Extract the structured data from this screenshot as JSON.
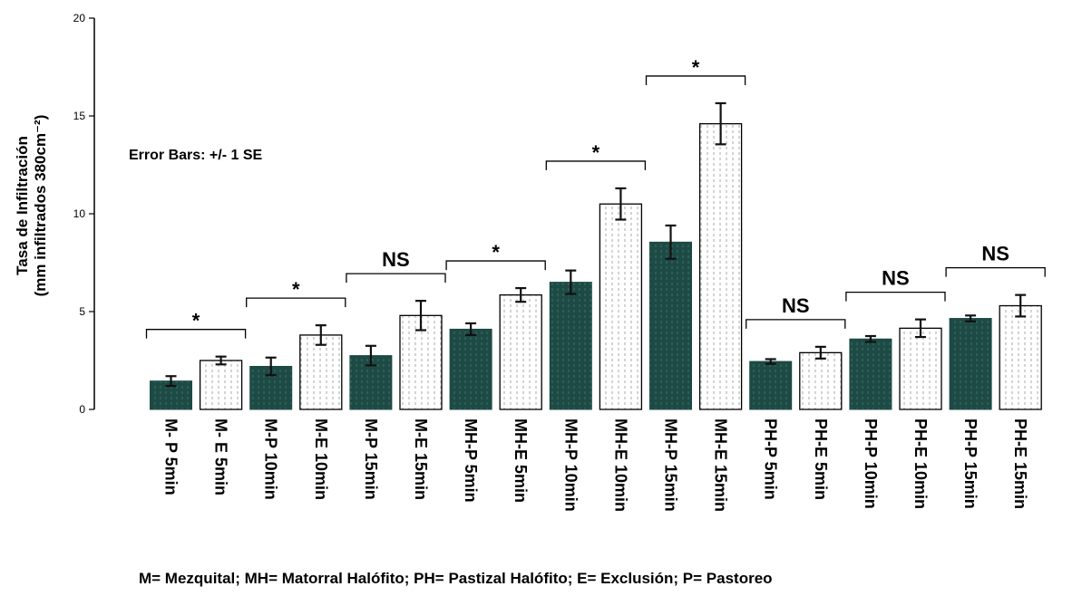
{
  "chart_data": {
    "type": "bar",
    "title": "",
    "ylabel_lines": [
      "Tasa de Infiltración",
      "(mm infiltrados 380cm⁻²)"
    ],
    "xlabel": "",
    "ylim": [
      0,
      20
    ],
    "yticks": [
      0,
      5,
      10,
      15,
      20
    ],
    "grid": false,
    "categories": [
      "M- P 5min",
      "M- E 5min",
      "M-P 10min",
      "M-E 10min",
      "M-P 15min",
      "M-E 15min",
      "MH-P 5min",
      "MH-E 5min",
      "MH-P 10min",
      "MH-E 10min",
      "MH-P 15min",
      "MH-E 15min",
      "PH-P 5min",
      "PH-E 5min",
      "PH-P 10min",
      "PH-E 10min",
      "PH-P 15min",
      "PH-E 15min"
    ],
    "values": [
      1.45,
      2.5,
      2.2,
      3.8,
      2.75,
      4.8,
      4.1,
      5.85,
      6.5,
      10.5,
      8.55,
      14.6,
      2.45,
      2.9,
      3.6,
      4.15,
      4.65,
      5.3
    ],
    "error_se": [
      0.25,
      0.2,
      0.45,
      0.5,
      0.5,
      0.75,
      0.3,
      0.35,
      0.6,
      0.8,
      0.85,
      1.05,
      0.12,
      0.3,
      0.15,
      0.45,
      0.15,
      0.55
    ],
    "treatment": [
      "P",
      "E",
      "P",
      "E",
      "P",
      "E",
      "P",
      "E",
      "P",
      "E",
      "P",
      "E",
      "P",
      "E",
      "P",
      "E",
      "P",
      "E"
    ],
    "colors": {
      "P": "#1d4a44",
      "E": "#ffffff",
      "axis": "#000000"
    },
    "annotation": "Error Bars: +/- 1 SE",
    "significance": [
      {
        "pair": [
          0,
          1
        ],
        "label": "*"
      },
      {
        "pair": [
          2,
          3
        ],
        "label": "*"
      },
      {
        "pair": [
          4,
          5
        ],
        "label": "NS"
      },
      {
        "pair": [
          6,
          7
        ],
        "label": "*"
      },
      {
        "pair": [
          8,
          9
        ],
        "label": "*"
      },
      {
        "pair": [
          10,
          11
        ],
        "label": "*"
      },
      {
        "pair": [
          12,
          13
        ],
        "label": "NS"
      },
      {
        "pair": [
          14,
          15
        ],
        "label": "NS"
      },
      {
        "pair": [
          16,
          17
        ],
        "label": "NS"
      }
    ],
    "footnote": "M= Mezquital; MH= Matorral Halófito; PH= Pastizal Halófito;  E= Exclusión; P= Pastoreo"
  }
}
